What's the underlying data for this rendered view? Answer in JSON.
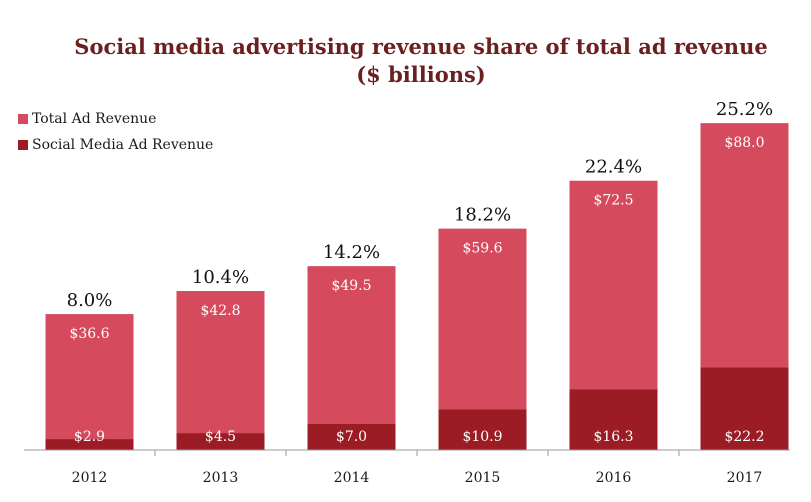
{
  "chart_data": {
    "type": "bar",
    "title": "Social media advertising revenue share of total ad revenue",
    "subtitle": "($ billions)",
    "categories": [
      "2012",
      "2013",
      "2014",
      "2015",
      "2016",
      "2017"
    ],
    "series": [
      {
        "name": "Total Ad Revenue",
        "color": "#d64a5e",
        "values": [
          36.6,
          42.8,
          49.5,
          59.6,
          72.5,
          88.0
        ],
        "labels": [
          "$36.6",
          "$42.8",
          "$49.5",
          "$59.6",
          "$72.5",
          "$88.0"
        ]
      },
      {
        "name": "Social Media Ad Revenue",
        "color": "#9b1c24",
        "values": [
          2.9,
          4.5,
          7.0,
          10.9,
          16.3,
          22.2
        ],
        "labels": [
          "$2.9",
          "$4.5",
          "$7.0",
          "$10.9",
          "$16.3",
          "$22.2"
        ]
      }
    ],
    "share_labels": [
      "8.0%",
      "10.4%",
      "14.2%",
      "18.2%",
      "22.4%",
      "25.2%"
    ],
    "ylim": [
      0,
      98
    ],
    "grid": false,
    "legend_position": "top-left"
  }
}
